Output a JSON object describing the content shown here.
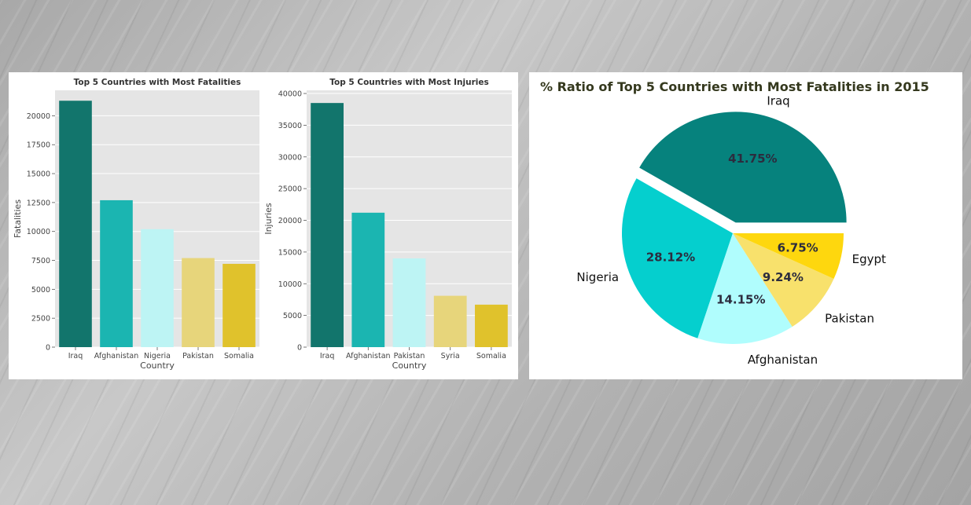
{
  "colors": {
    "bar_palette": [
      "#12756c",
      "#1bb5b1",
      "#bdf4f4",
      "#e7d57b",
      "#e0c22c"
    ],
    "pie_palette": [
      "#06827d",
      "#05cfce",
      "#b0fdfd",
      "#f8e16c",
      "#fed70e"
    ],
    "plot_background": "#e5e5e5",
    "grid": "#ffffff",
    "title_text": "#333333",
    "pie_title_text": "#35391e"
  },
  "chart_data": [
    {
      "type": "bar",
      "title": "Top 5 Countries with Most Fatalities",
      "xlabel": "Country",
      "ylabel": "Fatalities",
      "categories": [
        "Iraq",
        "Afghanistan",
        "Nigeria",
        "Pakistan",
        "Somalia"
      ],
      "values": [
        21300,
        12700,
        10200,
        7700,
        7200
      ],
      "ylim": [
        0,
        22200
      ],
      "yticks": [
        0,
        2500,
        5000,
        7500,
        10000,
        12500,
        15000,
        17500,
        20000
      ],
      "grid": true
    },
    {
      "type": "bar",
      "title": "Top 5 Countries with Most Injuries",
      "xlabel": "Country",
      "ylabel": "Injuries",
      "categories": [
        "Iraq",
        "Afghanistan",
        "Pakistan",
        "Syria",
        "Somalia"
      ],
      "values": [
        38500,
        21200,
        14000,
        8100,
        6700
      ],
      "ylim": [
        0,
        40500
      ],
      "yticks": [
        0,
        5000,
        10000,
        15000,
        20000,
        25000,
        30000,
        35000,
        40000
      ],
      "grid": true
    },
    {
      "type": "pie",
      "title": "% Ratio of Top 5 Countries with Most Fatalities in 2015",
      "labels": [
        "Iraq",
        "Nigeria",
        "Afghanistan",
        "Pakistan",
        "Egypt"
      ],
      "values": [
        41.75,
        28.12,
        14.15,
        9.24,
        6.75
      ],
      "value_labels": [
        "41.75%",
        "28.12%",
        "14.15%",
        "9.24%",
        "6.75%"
      ],
      "explode": [
        0.1,
        0,
        0,
        0,
        0
      ],
      "legend": false
    }
  ]
}
